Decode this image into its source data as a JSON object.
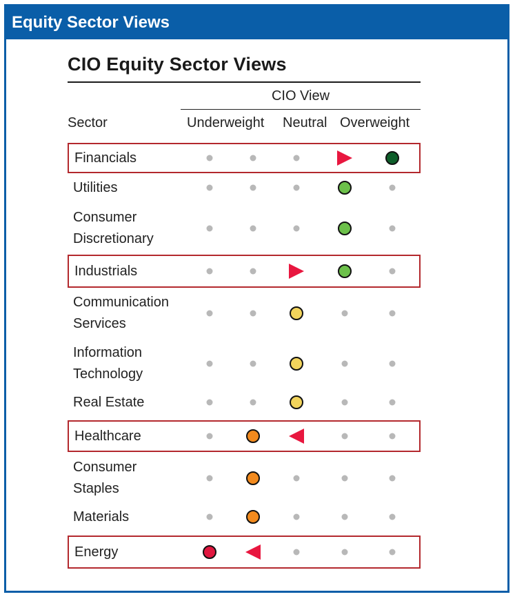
{
  "banner": {
    "title": "Equity Sector Views"
  },
  "chart_data": {
    "type": "table",
    "title": "CIO Equity Sector Views",
    "group_header": "CIO View",
    "column_header": "Sector",
    "scale_labels": [
      "Underweight",
      "Neutral",
      "Overweight"
    ],
    "levels": 5,
    "colors": {
      "dark_green": "#0e5e2a",
      "green": "#6cc04a",
      "yellow": "#f2d45c",
      "orange": "#f28a1e",
      "red": "#e0173f",
      "arrow": "#e8173f",
      "dot": "#b8b8b8",
      "highlight_border": "#b3282d"
    },
    "rows": [
      {
        "sector": [
          "Financials"
        ],
        "position": 5,
        "color": "dark_green",
        "highlight": true,
        "arrow": "right",
        "arrow_position": 4
      },
      {
        "sector": [
          "Utilities"
        ],
        "position": 4,
        "color": "green",
        "highlight": false
      },
      {
        "sector": [
          "Consumer",
          "Discretionary"
        ],
        "position": 4,
        "color": "green",
        "highlight": false
      },
      {
        "sector": [
          "Industrials"
        ],
        "position": 4,
        "color": "green",
        "highlight": true,
        "arrow": "right",
        "arrow_position": 3
      },
      {
        "sector": [
          "Communication",
          "Services"
        ],
        "position": 3,
        "color": "yellow",
        "highlight": false
      },
      {
        "sector": [
          "Information",
          "Technology"
        ],
        "position": 3,
        "color": "yellow",
        "highlight": false
      },
      {
        "sector": [
          "Real Estate"
        ],
        "position": 3,
        "color": "yellow",
        "highlight": false
      },
      {
        "sector": [
          "Healthcare"
        ],
        "position": 2,
        "color": "orange",
        "highlight": true,
        "arrow": "left",
        "arrow_position": 3
      },
      {
        "sector": [
          "Consumer",
          "Staples"
        ],
        "position": 2,
        "color": "orange",
        "highlight": false
      },
      {
        "sector": [
          "Materials"
        ],
        "position": 2,
        "color": "orange",
        "highlight": false
      },
      {
        "sector": [
          "Energy"
        ],
        "position": 1,
        "color": "red",
        "highlight": true,
        "arrow": "left",
        "arrow_position": 2
      }
    ]
  }
}
